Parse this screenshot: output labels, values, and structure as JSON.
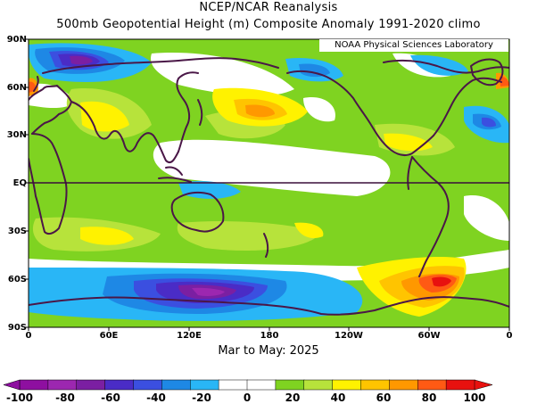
{
  "header": {
    "title": "NCEP/NCAR Reanalysis",
    "subtitle": "500mb Geopotential Height (m) Composite Anomaly 1991-2020 climo"
  },
  "map": {
    "credit": "NOAA Physical Sciences Laboratory",
    "period": "Mar to May: 2025",
    "lat_labels": [
      "90N",
      "60N",
      "30N",
      "EQ",
      "30S",
      "60S",
      "90S"
    ],
    "lon_labels": [
      "0",
      "60E",
      "120E",
      "180",
      "120W",
      "60W",
      "0"
    ]
  },
  "colorbar": {
    "tick_labels": [
      "-100",
      "-80",
      "-60",
      "-40",
      "-20",
      "0",
      "20",
      "40",
      "60",
      "80",
      "100"
    ],
    "colors": [
      "#8e0fa0",
      "#9c27b0",
      "#7b1fa2",
      "#4a2cc6",
      "#3b4fe0",
      "#1e88e5",
      "#29b6f6",
      "#ffffff",
      "#ffffff",
      "#7fd321",
      "#b7e33b",
      "#fff200",
      "#ffc400",
      "#ff9800",
      "#ff5a14",
      "#e8110f"
    ]
  },
  "chart_data": {
    "type": "heatmap",
    "title": "500mb Geopotential Height (m) Composite Anomaly 1991-2020 climo",
    "xlabel": "Mar to May: 2025",
    "x_ticks": [
      "0",
      "60E",
      "120E",
      "180",
      "120W",
      "60W",
      "0"
    ],
    "y_ticks": [
      "90N",
      "60N",
      "30N",
      "EQ",
      "30S",
      "60S",
      "90S"
    ],
    "colorbar_range": [
      -100,
      100
    ],
    "colorbar_ticks": [
      -100,
      -80,
      -60,
      -40,
      -20,
      0,
      20,
      40,
      60,
      80,
      100
    ]
  }
}
